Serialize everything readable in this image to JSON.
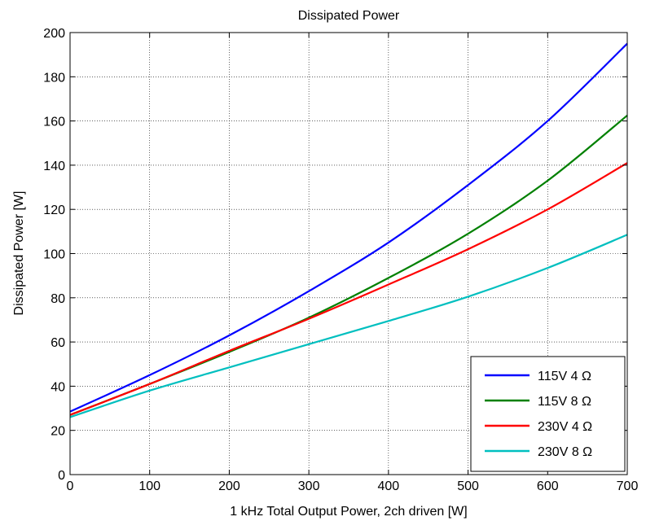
{
  "chart_data": {
    "type": "line",
    "title": "Dissipated Power",
    "xlabel": "1 kHz Total Output Power, 2ch driven [W]",
    "ylabel": "Dissipated Power [W]",
    "xlim": [
      0,
      700
    ],
    "ylim": [
      0,
      200
    ],
    "xticks": [
      0,
      100,
      200,
      300,
      400,
      500,
      600,
      700
    ],
    "yticks": [
      0,
      20,
      40,
      60,
      80,
      100,
      120,
      140,
      160,
      180,
      200
    ],
    "grid": true,
    "legend_position": "bottom-right",
    "x": [
      0,
      100,
      200,
      300,
      400,
      500,
      600,
      700
    ],
    "series": [
      {
        "name": "115V 4 Ω",
        "color": "#0000ff",
        "values": [
          28.5,
          45,
          63,
          83,
          105,
          131,
          160,
          195
        ]
      },
      {
        "name": "115V 8 Ω",
        "color": "#008000",
        "values": [
          27,
          41,
          55.5,
          71,
          89,
          109,
          133,
          162.5
        ]
      },
      {
        "name": "230V 4 Ω",
        "color": "#ff0000",
        "values": [
          27,
          41,
          56,
          70.5,
          86,
          102,
          120,
          141
        ]
      },
      {
        "name": "230V 8 Ω",
        "color": "#00bfbf",
        "values": [
          26,
          38,
          48.5,
          59,
          69.5,
          80.5,
          93.5,
          108.5
        ]
      }
    ]
  }
}
